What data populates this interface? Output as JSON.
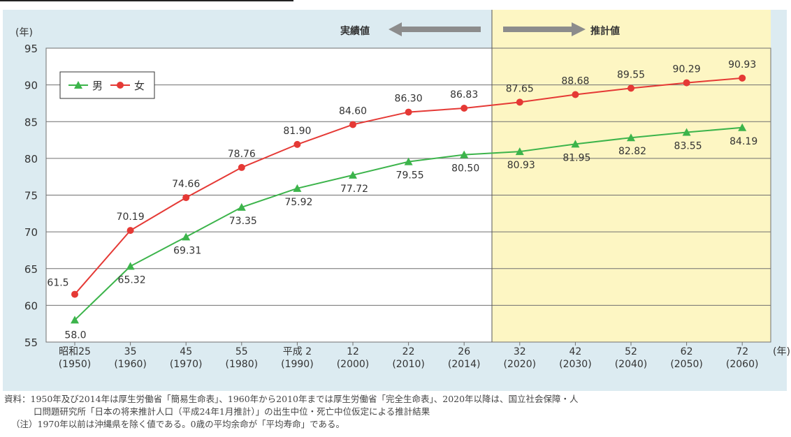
{
  "chart_data": {
    "type": "line",
    "y_unit": "(年)",
    "x_unit": "(年)",
    "ylim": [
      55,
      95
    ],
    "yticks": [
      55,
      60,
      65,
      70,
      75,
      80,
      85,
      90,
      95
    ],
    "grid": true,
    "legend_position": "top-left",
    "categories": [
      {
        "era": "昭和25",
        "year": "(1950)"
      },
      {
        "era": "35",
        "year": "(1960)"
      },
      {
        "era": "45",
        "year": "(1970)"
      },
      {
        "era": "55",
        "year": "(1980)"
      },
      {
        "era": "平成 2",
        "year": "(1990)"
      },
      {
        "era": "12",
        "year": "(2000)"
      },
      {
        "era": "22",
        "year": "(2010)"
      },
      {
        "era": "26",
        "year": "(2014)"
      },
      {
        "era": "32",
        "year": "(2020)"
      },
      {
        "era": "42",
        "year": "(2030)"
      },
      {
        "era": "52",
        "year": "(2040)"
      },
      {
        "era": "62",
        "year": "(2050)"
      },
      {
        "era": "72",
        "year": "(2060)"
      }
    ],
    "series": [
      {
        "name": "男",
        "color": "#3cb44b",
        "marker": "triangle",
        "values": [
          58.0,
          65.32,
          69.31,
          73.35,
          75.92,
          77.72,
          79.55,
          80.5,
          80.93,
          81.95,
          82.82,
          83.55,
          84.19
        ],
        "labels": [
          "58.0",
          "65.32",
          "69.31",
          "73.35",
          "75.92",
          "77.72",
          "79.55",
          "80.50",
          "80.93",
          "81.95",
          "82.82",
          "83.55",
          "84.19"
        ]
      },
      {
        "name": "女",
        "color": "#e53935",
        "marker": "circle",
        "values": [
          61.5,
          70.19,
          74.66,
          78.76,
          81.9,
          84.6,
          86.3,
          86.83,
          87.65,
          88.68,
          89.55,
          90.29,
          90.93
        ],
        "labels": [
          "61.5",
          "70.19",
          "74.66",
          "78.76",
          "81.90",
          "84.60",
          "86.30",
          "86.83",
          "87.65",
          "88.68",
          "89.55",
          "90.29",
          "90.93"
        ]
      }
    ],
    "regions": {
      "actual_label": "実績値",
      "projected_label": "推計値",
      "projected_from_index": 8,
      "projected_color": "#fdf6c3"
    }
  },
  "notes": {
    "source_line1": "資料：1950年及び2014年は厚生労働省「簡易生命表」、1960年から2010年までは厚生労働省「完全生命表」、2020年以降は、国立社会保障・人",
    "source_line2": "口問題研究所「日本の将来推計人口（平成24年1月推計）」の出生中位・死亡中位仮定による推計結果",
    "note": "（注）1970年以前は沖縄県を除く値である。0歳の平均余命が「平均寿命」である。"
  }
}
